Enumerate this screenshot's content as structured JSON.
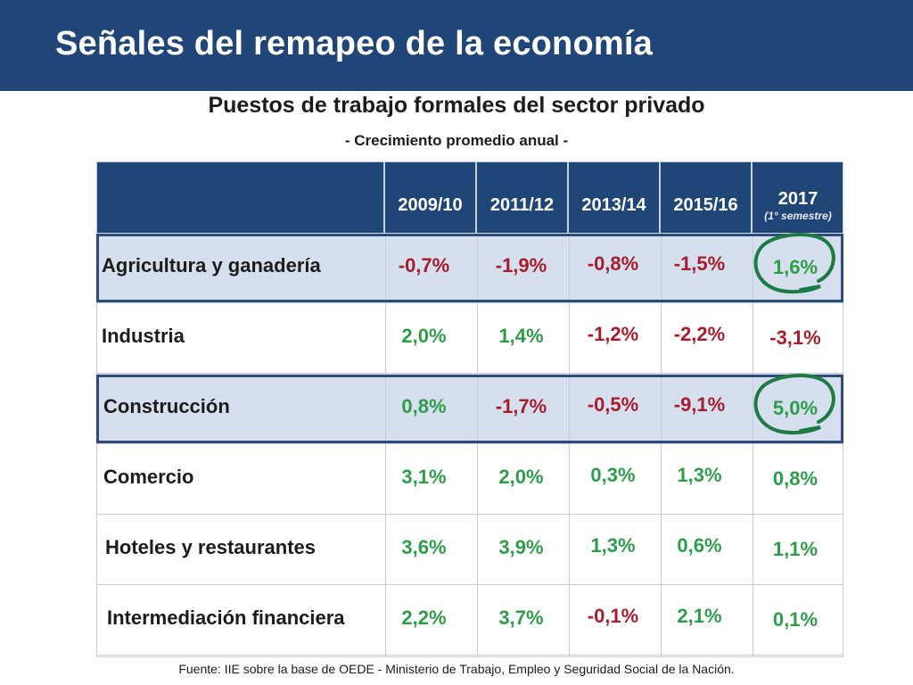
{
  "title": "Señales del remapeo de la economía",
  "subtitle": "Puestos de trabajo formales del sector privado",
  "subnote": "- Crecimiento promedio anual -",
  "columns": [
    {
      "label": "2009/10",
      "sub": ""
    },
    {
      "label": "2011/12",
      "sub": ""
    },
    {
      "label": "2013/14",
      "sub": ""
    },
    {
      "label": "2015/16",
      "sub": ""
    },
    {
      "label": "2017",
      "sub": "(1° semestre)"
    }
  ],
  "rows": [
    {
      "sector": "Agricultura y ganadería",
      "values": [
        "-0,7%",
        "-1,9%",
        "-0,8%",
        "-1,5%",
        "1,6%"
      ],
      "highlighted": true
    },
    {
      "sector": "Industria",
      "values": [
        "2,0%",
        "1,4%",
        "-1,2%",
        "-2,2%",
        "-3,1%"
      ],
      "highlighted": false
    },
    {
      "sector": "Construcción",
      "values": [
        "0,8%",
        "-1,7%",
        "-0,5%",
        "-9,1%",
        "5,0%"
      ],
      "highlighted": true
    },
    {
      "sector": "Comercio",
      "values": [
        "3,1%",
        "2,0%",
        "0,3%",
        "1,3%",
        "0,8%"
      ],
      "highlighted": false
    },
    {
      "sector": "Hoteles y restaurantes",
      "values": [
        "3,6%",
        "3,9%",
        "1,3%",
        "0,6%",
        "1,1%"
      ],
      "highlighted": false
    },
    {
      "sector": "Intermediación financiera",
      "values": [
        "2,2%",
        "3,7%",
        "-0,1%",
        "2,1%",
        "0,1%"
      ],
      "highlighted": false
    }
  ],
  "colors": {
    "header_bg": "#1f4677",
    "highlight_row": "#d6dfee",
    "positive": "#2e9d4a",
    "negative": "#a61d2b",
    "annotation_circle": "#1e7a45"
  },
  "source": "Fuente: IIE sobre la base de OEDE - Ministerio de Trabajo, Empleo y Seguridad Social de la Nación."
}
